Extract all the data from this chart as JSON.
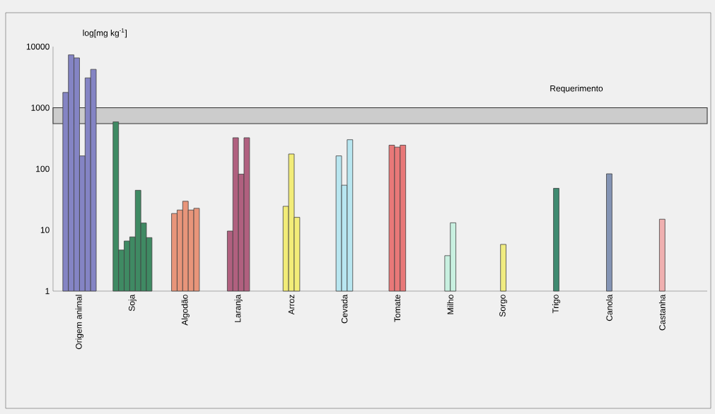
{
  "chart_data": {
    "type": "bar",
    "ylabel": "log[mg kg$^{-1}$]",
    "log": "y",
    "categories": [
      "Origem animal",
      "Soja",
      "Algodão",
      "Laranja",
      "Arroz",
      "Cevada",
      "Tomate",
      "Milho",
      "Sorgo",
      "Trigo",
      "Canola",
      "Castanha"
    ],
    "series": [
      {
        "values": [
          1780,
          588,
          18.6,
          9.6,
          24.4,
          163,
          244,
          3.8,
          5.8,
          48,
          83,
          15
        ],
        "colors": [
          "#8484c4",
          "#3f8a63",
          "#e8957a",
          "#b0607f",
          "#f2ec78",
          "#b8e6f0",
          "#e87878",
          "#c8f0e0",
          "#f0ec80",
          "#3f8a70",
          "#8494b4",
          "#f0b0b0"
        ]
      },
      {
        "values": [
          7330,
          4.7,
          21.2,
          323,
          175,
          54,
          227,
          13.1,
          null,
          null,
          null,
          null
        ],
        "colors": [
          "#8484c4",
          "#3f8a63",
          "#e8957a",
          "#b0607f",
          "#f2ec78",
          "#b8e6f0",
          "#e87878",
          "#c8f0e0",
          null,
          null,
          null,
          null
        ]
      },
      {
        "values": [
          6540,
          6.6,
          29.5,
          82,
          16.1,
          300,
          244,
          null,
          null,
          null,
          null,
          null
        ],
        "colors": [
          "#8484c4",
          "#3f8a63",
          "#e8957a",
          "#b0607f",
          "#f2ec78",
          "#b8e6f0",
          "#e87878",
          null,
          null,
          null,
          null,
          null
        ]
      },
      {
        "values": [
          163,
          7.7,
          21.2,
          323,
          null,
          null,
          null,
          null,
          null,
          null,
          null,
          null
        ],
        "colors": [
          "#8484c4",
          "#3f8a63",
          "#e8957a",
          "#b0607f",
          null,
          null,
          null,
          null,
          null,
          null,
          null,
          null
        ]
      },
      {
        "values": [
          3080,
          44.6,
          22.6,
          null,
          null,
          null,
          null,
          null,
          null,
          null,
          null,
          null
        ],
        "colors": [
          "#8484c4",
          "#3f8a63",
          "#e8957a",
          null,
          null,
          null,
          null,
          null,
          null,
          null,
          null,
          null
        ]
      },
      {
        "values": [
          4250,
          13,
          null,
          null,
          null,
          null,
          null,
          null,
          null,
          null,
          null,
          null
        ],
        "colors": [
          "#8484c4",
          "#3f8a63",
          null,
          null,
          null,
          null,
          null,
          null,
          null,
          null,
          null,
          null
        ]
      },
      {
        "values": [
          null,
          7.5,
          null,
          null,
          null,
          null,
          null,
          null,
          null,
          null,
          null,
          null
        ],
        "colors": [
          null,
          "#3f8a63",
          null,
          null,
          null,
          null,
          null,
          null,
          null,
          null,
          null,
          null
        ]
      }
    ],
    "ylim": [
      1,
      10000
    ],
    "yticks": [
      1,
      10,
      100,
      1000,
      10000
    ],
    "bands": [
      {
        "axis": "y",
        "from": 550,
        "to": 1000,
        "label": "Requerimento"
      }
    ]
  }
}
